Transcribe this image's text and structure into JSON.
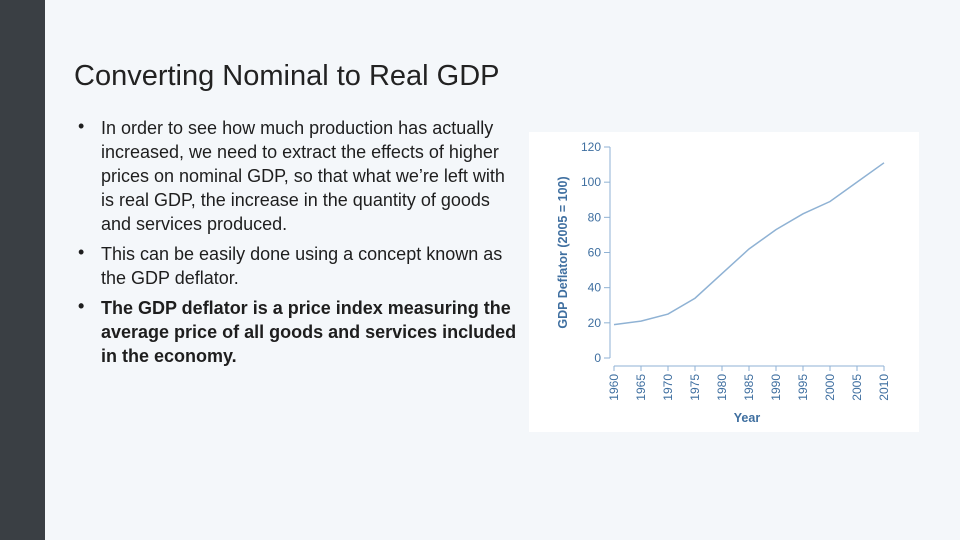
{
  "slide": {
    "title": "Converting Nominal to Real GDP",
    "bullets": [
      {
        "text": "In order to see how much production has actually increased, we need to extract the effects of higher prices on nominal GDP, so that what we’re left with is real GDP, the increase in the quantity of goods and services produced.",
        "bold": false
      },
      {
        "text": "This can be easily done using a concept known as the GDP deflator.",
        "bold": false
      },
      {
        "text": "The GDP deflator is a price index measuring the average price of all goods and services included in the economy.",
        "bold": true
      }
    ],
    "bullet_glyph": "•"
  },
  "colors": {
    "sidebar": "#3a3f44",
    "background": "#f4f7fa",
    "line": "#8fb2d4",
    "axis_text": "#3f6fa0",
    "axis_line": "#8fb2d4"
  },
  "chart_data": {
    "type": "line",
    "title": "",
    "xlabel": "Year",
    "ylabel": "GDP Deflator (2005 = 100)",
    "x": [
      1960,
      1965,
      1970,
      1975,
      1980,
      1985,
      1990,
      1995,
      2000,
      2005,
      2010
    ],
    "xticks": [
      "1960",
      "1965",
      "1970",
      "1975",
      "1980",
      "1985",
      "1990",
      "1995",
      "2000",
      "2005",
      "2010"
    ],
    "yticks": [
      "0",
      "20",
      "40",
      "60",
      "80",
      "100",
      "120"
    ],
    "ylim": [
      0,
      120
    ],
    "xlim": [
      1960,
      2010
    ],
    "grid": false,
    "series": [
      {
        "values": [
          19,
          21,
          25,
          34,
          48,
          62,
          73,
          82,
          89,
          100,
          111
        ]
      }
    ]
  }
}
